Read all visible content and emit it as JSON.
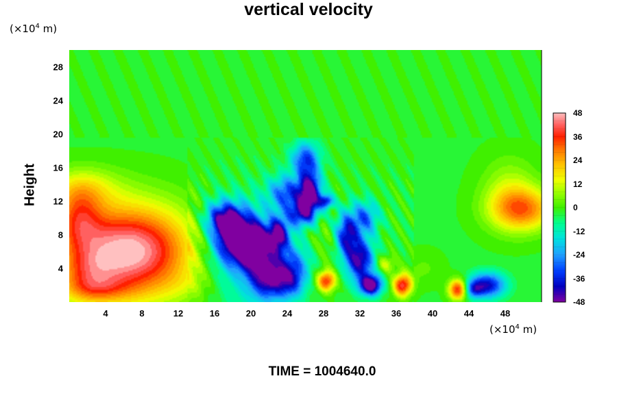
{
  "title": "vertical velocity",
  "y_unit": {
    "prefix": "(×10",
    "exp": "4",
    "suffix": " m)"
  },
  "x_unit": {
    "prefix": "(×10",
    "exp": "4",
    "suffix": " m)"
  },
  "time_label": "TIME = 1004640.0",
  "chart_data": {
    "type": "heatmap",
    "title": "vertical velocity",
    "xlabel": "",
    "ylabel": "Height",
    "xlim": [
      0,
      52
    ],
    "ylim": [
      0,
      30
    ],
    "x_ticks": [
      "4",
      "8",
      "12",
      "16",
      "20",
      "24",
      "28",
      "32",
      "36",
      "40",
      "44",
      "48"
    ],
    "y_ticks": [
      "4",
      "8",
      "12",
      "16",
      "20",
      "24",
      "28"
    ],
    "colorbar": {
      "range": [
        -48,
        48
      ],
      "ticks": [
        "48",
        "36",
        "24",
        "12",
        "0",
        "-12",
        "-24",
        "-36",
        "-48"
      ],
      "colormap": [
        {
          "v": -48,
          "color": "#8000a0"
        },
        {
          "v": -40,
          "color": "#0000c0"
        },
        {
          "v": -32,
          "color": "#0040ff"
        },
        {
          "v": -24,
          "color": "#20a0ff"
        },
        {
          "v": -16,
          "color": "#00e0e0"
        },
        {
          "v": -8,
          "color": "#00ff90"
        },
        {
          "v": 0,
          "color": "#40f000"
        },
        {
          "v": 8,
          "color": "#a0ff00"
        },
        {
          "v": 14,
          "color": "#f0ff00"
        },
        {
          "v": 22,
          "color": "#ffc000"
        },
        {
          "v": 30,
          "color": "#ff7000"
        },
        {
          "v": 36,
          "color": "#ff2000"
        },
        {
          "v": 42,
          "color": "#ff6060"
        },
        {
          "v": 48,
          "color": "#ffc0c0"
        }
      ]
    },
    "background_value": -2,
    "features": [
      {
        "x": 6.5,
        "y": 6,
        "rx": 7,
        "ry": 5.5,
        "amp": 52
      },
      {
        "x": 1,
        "y": 10,
        "rx": 2.5,
        "ry": 3.5,
        "amp": 22
      },
      {
        "x": 1.5,
        "y": 13.5,
        "rx": 4,
        "ry": 2.5,
        "amp": 14
      },
      {
        "x": 2,
        "y": 3,
        "rx": 3,
        "ry": 3,
        "amp": 14
      },
      {
        "x": 3,
        "y": 1.5,
        "rx": 4,
        "ry": 1.5,
        "amp": 10
      },
      {
        "x": 50,
        "y": 11,
        "rx": 3.5,
        "ry": 2.5,
        "amp": 28
      },
      {
        "x": 48.5,
        "y": 13,
        "rx": 3,
        "ry": 4,
        "amp": 12
      },
      {
        "x": 13,
        "y": 2,
        "rx": 3,
        "ry": 2,
        "amp": 4
      },
      {
        "x": 20,
        "y": 5,
        "rx": 5,
        "ry": 7,
        "amp": -14
      },
      {
        "x": 18.5,
        "y": 7.5,
        "rx": 2.5,
        "ry": 3,
        "amp": -52
      },
      {
        "x": 17,
        "y": 10,
        "rx": 2,
        "ry": 2,
        "amp": -32
      },
      {
        "x": 20.5,
        "y": 6.5,
        "rx": 1.5,
        "ry": 2.5,
        "amp": -32
      },
      {
        "x": 22,
        "y": 3,
        "rx": 2,
        "ry": 2.5,
        "amp": -38
      },
      {
        "x": 23,
        "y": 8,
        "rx": 1.2,
        "ry": 2,
        "amp": -40
      },
      {
        "x": 24,
        "y": 13,
        "rx": 2,
        "ry": 2,
        "amp": -28
      },
      {
        "x": 25.5,
        "y": 10.5,
        "rx": 1.5,
        "ry": 1.5,
        "amp": -30
      },
      {
        "x": 26.5,
        "y": 13,
        "rx": 1.2,
        "ry": 2.5,
        "amp": -48
      },
      {
        "x": 26,
        "y": 17,
        "rx": 1.5,
        "ry": 2,
        "amp": -30
      },
      {
        "x": 28.3,
        "y": 12,
        "rx": 0.8,
        "ry": 0.8,
        "amp": -34
      },
      {
        "x": 25,
        "y": 5,
        "rx": 2,
        "ry": 2,
        "amp": -14
      },
      {
        "x": 24.5,
        "y": 2.5,
        "rx": 1.5,
        "ry": 2,
        "amp": -26
      },
      {
        "x": 30.5,
        "y": 8,
        "rx": 1.2,
        "ry": 2.5,
        "amp": -36
      },
      {
        "x": 32,
        "y": 5,
        "rx": 1.5,
        "ry": 2.5,
        "amp": -42
      },
      {
        "x": 33.2,
        "y": 2,
        "rx": 1.2,
        "ry": 1.2,
        "amp": -50
      },
      {
        "x": 32.5,
        "y": 10,
        "rx": 1.5,
        "ry": 2,
        "amp": -26
      },
      {
        "x": 28.3,
        "y": 2.5,
        "rx": 1,
        "ry": 1.2,
        "amp": 38
      },
      {
        "x": 36.7,
        "y": 2,
        "rx": 1,
        "ry": 1.3,
        "amp": 42
      },
      {
        "x": 34.8,
        "y": 4.5,
        "rx": 1,
        "ry": 1,
        "amp": 14
      },
      {
        "x": 42.8,
        "y": 1.5,
        "rx": 1,
        "ry": 1.2,
        "amp": 40
      },
      {
        "x": 46,
        "y": 2,
        "rx": 2,
        "ry": 1.5,
        "amp": -38
      },
      {
        "x": 44.5,
        "y": 1.5,
        "rx": 1,
        "ry": 1,
        "amp": -20
      },
      {
        "x": 39,
        "y": 4,
        "rx": 2,
        "ry": 2,
        "amp": 4
      },
      {
        "x": 28,
        "y": 7,
        "rx": 2,
        "ry": 3,
        "amp": 6
      }
    ]
  }
}
